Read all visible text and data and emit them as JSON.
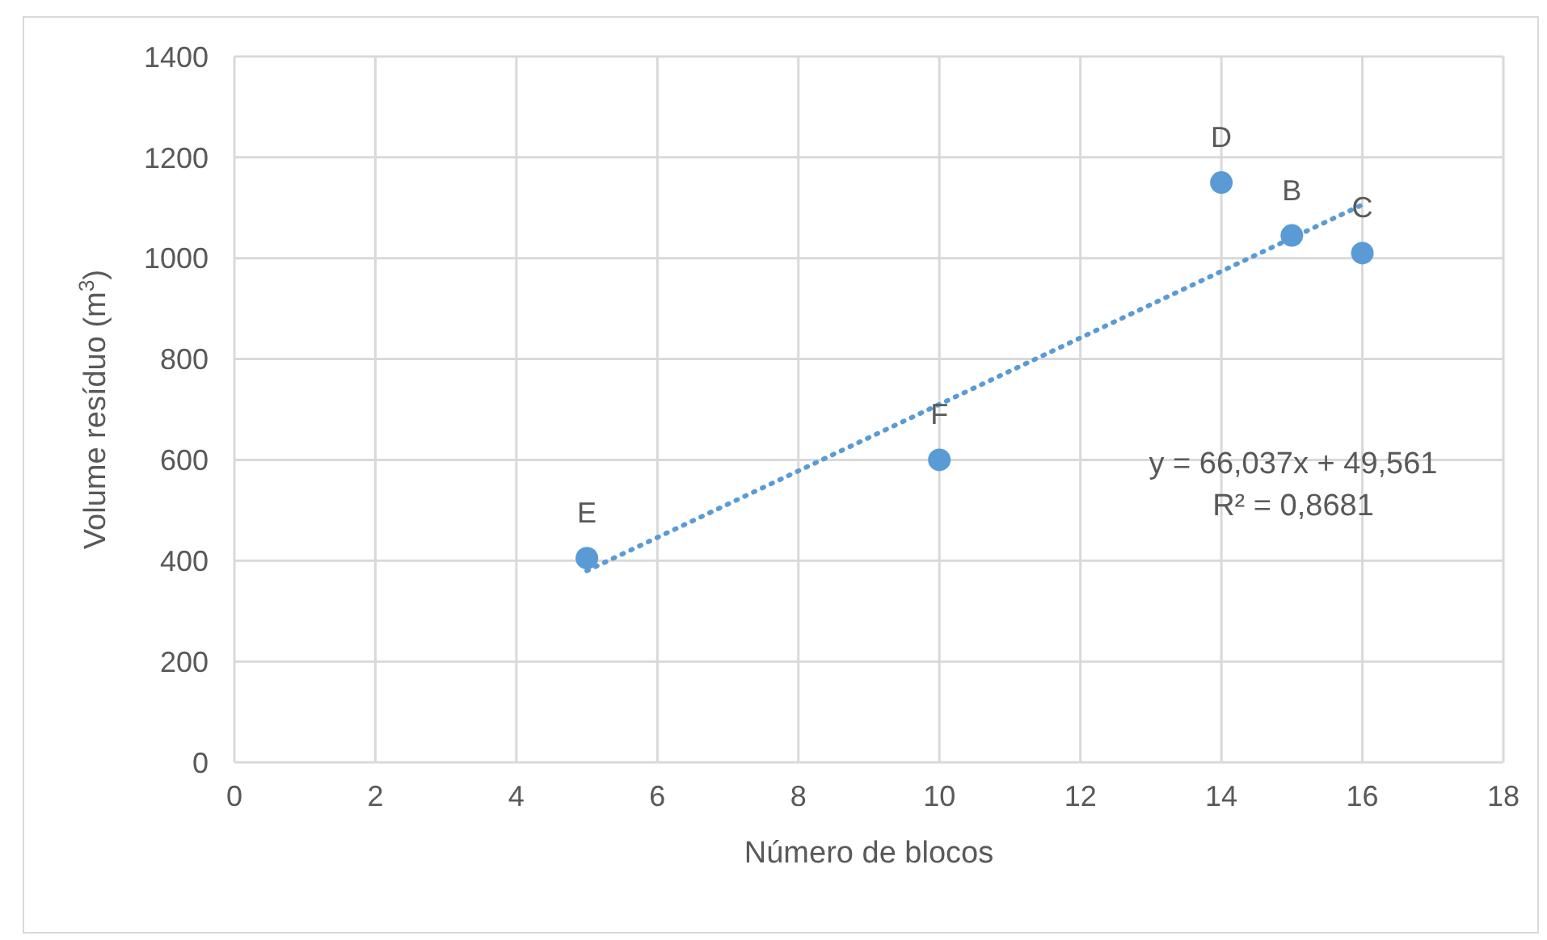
{
  "chart_data": {
    "type": "scatter",
    "xlabel": "Número de blocos",
    "ylabel": "Volume resíduo (m$^{3}$)",
    "xlim": [
      0,
      18
    ],
    "xticks": [
      0,
      2,
      4,
      6,
      8,
      10,
      12,
      14,
      16,
      18
    ],
    "ylim": [
      0,
      1400
    ],
    "yticks": [
      0,
      200,
      400,
      600,
      800,
      1000,
      1200,
      1400
    ],
    "grid": true,
    "marker": "circle",
    "series": [
      {
        "color": "#5b9bd5",
        "x": [
          5,
          10,
          14,
          15,
          16
        ],
        "values": [
          405,
          600,
          1150,
          1045,
          1010
        ]
      },
      {
        "type": "line",
        "color": "#5b9bd5",
        "line_style": "dotted",
        "marker": "none",
        "x": [
          5,
          16
        ],
        "values": [
          380,
          1106
        ]
      }
    ],
    "annotations": [
      {
        "text": "E",
        "x": 5,
        "y": 405
      },
      {
        "text": "F",
        "x": 10,
        "y": 600
      },
      {
        "text": "D",
        "x": 14,
        "y": 1150
      },
      {
        "text": "B",
        "x": 15,
        "y": 1045
      },
      {
        "text": "C",
        "x": 16,
        "y": 1010
      },
      "y = 66,037x + 49,561",
      "R² = 0,8681"
    ]
  }
}
